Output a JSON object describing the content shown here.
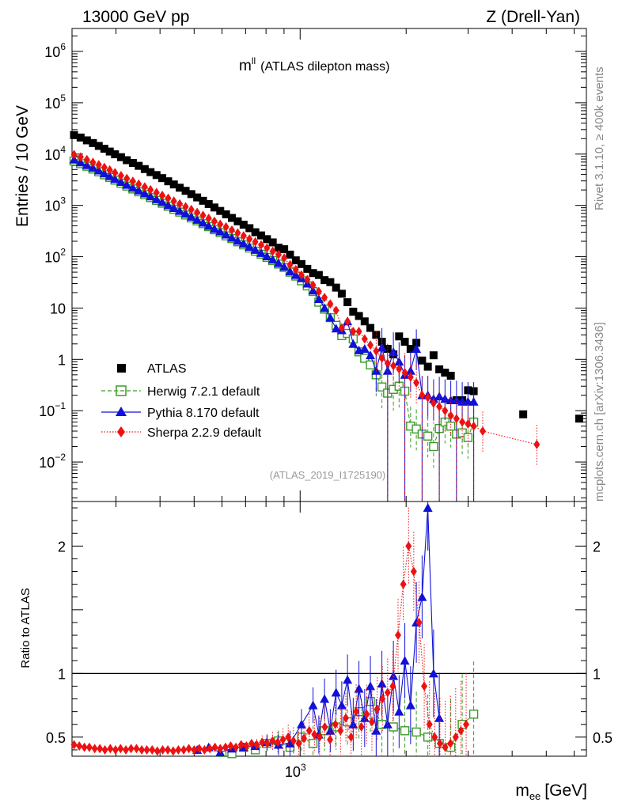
{
  "header": {
    "left": "13000 GeV pp",
    "right": "Z (Drell-Yan)"
  },
  "side": {
    "top": "Rivet 3.1.10, ≥ 400k events",
    "bottom": "mcplots.cern.ch [arXiv:1306.3436]"
  },
  "chart_data": [
    {
      "type": "scatter",
      "panel": "main",
      "title": "m",
      "title_superscript": "ll",
      "subtitle": "(ATLAS dilepton mass)",
      "watermark": "(ATLAS_2019_I1725190)",
      "ylabel": "Entries / 10 GeV",
      "xscale": "log",
      "yscale": "log",
      "xlim": [
        225,
        6500
      ],
      "ylim": [
        0.0017,
        2800000
      ],
      "yticks": [
        {
          "value": 0.01,
          "base": "10",
          "exp": "−2"
        },
        {
          "value": 0.1,
          "base": "10",
          "exp": "−1"
        },
        {
          "value": 1,
          "base": "1",
          "exp": ""
        },
        {
          "value": 10,
          "base": "10",
          "exp": ""
        },
        {
          "value": 100,
          "base": "10",
          "exp": "2"
        },
        {
          "value": 1000,
          "base": "10",
          "exp": "3"
        },
        {
          "value": 10000,
          "base": "10",
          "exp": "4"
        },
        {
          "value": 100000,
          "base": "10",
          "exp": "5"
        },
        {
          "value": 1000000,
          "base": "10",
          "exp": "6"
        }
      ],
      "legend_position": "bottom-left",
      "legend": [
        "ATLAS",
        "Herwig 7.2.1 default",
        "Pythia 8.170 default",
        "Sherpa 2.2.9 default"
      ],
      "colors": {
        "ATLAS": "#000000",
        "Herwig": "#3a9a27",
        "Pythia": "#1010d8",
        "Sherpa": "#ee1111"
      },
      "series": [
        {
          "name": "ATLAS",
          "x": [
            228,
            238,
            248,
            258,
            268,
            278,
            288,
            298,
            310,
            322,
            335,
            348,
            362,
            376,
            391,
            406,
            422,
            438,
            455,
            473,
            491,
            510,
            530,
            550,
            571,
            593,
            616,
            640,
            665,
            691,
            718,
            746,
            775,
            805,
            836,
            868,
            901,
            936,
            972,
            1009,
            1048,
            1088,
            1130,
            1173,
            1218,
            1265,
            1313,
            1363,
            1415,
            1469,
            1525,
            1583,
            1644,
            1707,
            1772,
            1840,
            1910,
            1983,
            2059,
            2138,
            2220,
            2305,
            2393,
            2484,
            2579,
            2678,
            2780,
            2886,
            2997,
            3111,
            4300,
            6200
          ],
          "y": [
            23500,
            21000,
            18500,
            16400,
            14400,
            12700,
            11200,
            9900,
            8700,
            7600,
            6700,
            5900,
            5100,
            4450,
            3900,
            3400,
            2950,
            2560,
            2210,
            1920,
            1660,
            1430,
            1230,
            1060,
            910,
            780,
            670,
            570,
            490,
            420,
            360,
            300,
            260,
            220,
            190,
            150,
            140,
            110,
            85,
            72,
            58,
            48,
            44,
            35,
            32,
            25,
            19,
            13,
            8.5,
            7.0,
            5.5,
            4.1,
            3.0,
            2.2,
            1.6,
            1.25,
            2.8,
            2.2,
            1.6,
            2.1,
            0.95,
            0.72,
            1.2,
            0.64,
            0.55,
            0.48,
            0.16,
            0.16,
            0.25,
            0.24,
            0.085,
            0.07
          ]
        },
        {
          "name": "Herwig 7.2.1 default",
          "x": [
            228,
            238,
            248,
            258,
            268,
            278,
            288,
            298,
            310,
            322,
            335,
            348,
            362,
            376,
            391,
            406,
            422,
            438,
            455,
            473,
            491,
            510,
            530,
            550,
            571,
            593,
            616,
            640,
            665,
            691,
            718,
            746,
            775,
            805,
            836,
            868,
            901,
            936,
            972,
            1009,
            1048,
            1088,
            1130,
            1173,
            1218,
            1265,
            1313,
            1363,
            1415,
            1469,
            1525,
            1583,
            1644,
            1707,
            1772,
            1840,
            1910,
            1983,
            2059,
            2138,
            2220,
            2305,
            2393,
            2484,
            2579,
            2678,
            2780,
            2886,
            2997,
            3111
          ],
          "y": [
            7300,
            6500,
            5800,
            5100,
            4500,
            3950,
            3500,
            3100,
            2700,
            2380,
            2090,
            1840,
            1620,
            1420,
            1250,
            1100,
            960,
            840,
            740,
            650,
            570,
            500,
            440,
            385,
            335,
            295,
            255,
            225,
            195,
            170,
            148,
            128,
            112,
            97,
            84,
            72,
            62,
            50,
            42,
            34,
            27,
            21,
            13,
            9.5,
            6.5,
            4.6,
            2.9,
            3.2,
            2.5,
            1.4,
            1.05,
            0.78,
            0.5,
            0.29,
            0.22,
            0.26,
            0.3,
            0.24,
            0.05,
            0.044,
            0.035,
            0.032,
            0.02,
            0.045,
            0.06,
            0.05,
            0.035,
            0.037,
            0.03,
            0.06
          ]
        },
        {
          "name": "Pythia 8.170 default",
          "x": [
            228,
            238,
            248,
            258,
            268,
            278,
            288,
            298,
            310,
            322,
            335,
            348,
            362,
            376,
            391,
            406,
            422,
            438,
            455,
            473,
            491,
            510,
            530,
            550,
            571,
            593,
            616,
            640,
            665,
            691,
            718,
            746,
            775,
            805,
            836,
            868,
            901,
            936,
            972,
            1009,
            1048,
            1088,
            1130,
            1173,
            1218,
            1265,
            1313,
            1363,
            1415,
            1469,
            1525,
            1583,
            1644,
            1707,
            1772,
            1840,
            1910,
            1983,
            2059,
            2138,
            2220,
            2305,
            2393,
            2484,
            2579,
            2678,
            2780,
            2886,
            2997,
            3111
          ],
          "y": [
            7800,
            6900,
            6100,
            5400,
            4800,
            4200,
            3700,
            3280,
            2860,
            2520,
            2210,
            1950,
            1710,
            1500,
            1320,
            1160,
            1010,
            890,
            780,
            690,
            600,
            525,
            460,
            400,
            350,
            310,
            270,
            235,
            205,
            180,
            156,
            136,
            118,
            102,
            88,
            75,
            64,
            52,
            44,
            38,
            30,
            22,
            15,
            10,
            6.5,
            4.0,
            3.7,
            5.5,
            2.0,
            1.5,
            1.6,
            1.2,
            0.6,
            1.7,
            0.6,
            1.4,
            0.9,
            0.5,
            0.6,
            1.6,
            0.2,
            0.2,
            0.17,
            0.19,
            0.17,
            0.16,
            0.16,
            0.15,
            0.15,
            0.15
          ]
        },
        {
          "name": "Sherpa 2.2.9 default",
          "x": [
            228,
            238,
            248,
            258,
            268,
            278,
            288,
            298,
            310,
            322,
            335,
            348,
            362,
            376,
            391,
            406,
            422,
            438,
            455,
            473,
            491,
            510,
            530,
            550,
            571,
            593,
            616,
            640,
            665,
            691,
            718,
            746,
            775,
            805,
            836,
            868,
            901,
            936,
            972,
            1009,
            1048,
            1088,
            1130,
            1173,
            1218,
            1265,
            1313,
            1363,
            1415,
            1469,
            1525,
            1583,
            1644,
            1707,
            1772,
            1840,
            1910,
            1983,
            2059,
            2138,
            2220,
            2305,
            2393,
            2484,
            2579,
            2678,
            2780,
            2886,
            2997,
            3111,
            3300,
            4700
          ],
          "y": [
            9800,
            8800,
            7800,
            6900,
            6200,
            5500,
            4900,
            4350,
            3800,
            3350,
            2950,
            2600,
            2290,
            2020,
            1780,
            1570,
            1380,
            1210,
            1070,
            940,
            830,
            730,
            640,
            560,
            490,
            430,
            380,
            330,
            290,
            255,
            222,
            195,
            170,
            148,
            128,
            110,
            94,
            70,
            56,
            44,
            36,
            28,
            21,
            16,
            12,
            9.0,
            4.1,
            5.5,
            3.5,
            3.5,
            2.5,
            1.9,
            1.45,
            1.05,
            0.84,
            0.75,
            0.65,
            0.55,
            0.45,
            0.35,
            0.2,
            0.18,
            0.14,
            0.12,
            0.1,
            0.08,
            0.07,
            0.06,
            0.055,
            0.05,
            0.04,
            0.022
          ]
        }
      ]
    },
    {
      "type": "scatter",
      "panel": "ratio",
      "ylabel": "Ratio to ATLAS",
      "xlabel": "m",
      "xlabel_subscript": "ee",
      "xlabel_unit": "[GeV]",
      "xscale": "log",
      "xlim": [
        225,
        6500
      ],
      "ylim": [
        0.35,
        2.35
      ],
      "yticks": [
        0.5,
        1,
        2
      ],
      "xticks": [
        {
          "value": 1000,
          "base": "10",
          "exp": "3"
        }
      ],
      "reference_line": 1,
      "series": [
        {
          "name": "Herwig 7.2.1 default",
          "x": [
            600,
            640,
            691,
            746,
            805,
            868,
            936,
            1009,
            1088,
            1173,
            1265,
            1363,
            1469,
            1583,
            1707,
            1840,
            1983,
            2138,
            2305,
            2484,
            2678,
            2886,
            3111
          ],
          "y": [
            0.38,
            0.37,
            0.42,
            0.4,
            0.45,
            0.47,
            0.42,
            0.5,
            0.45,
            0.55,
            0.58,
            0.62,
            0.7,
            0.78,
            0.6,
            0.58,
            0.55,
            0.54,
            0.5,
            0.45,
            0.42,
            0.6,
            0.68
          ]
        },
        {
          "name": "Pythia 8.170 default",
          "x": [
            510,
            550,
            593,
            640,
            691,
            746,
            805,
            868,
            936,
            1009,
            1088,
            1130,
            1173,
            1218,
            1265,
            1313,
            1363,
            1415,
            1469,
            1525,
            1583,
            1644,
            1707,
            1772,
            1840,
            1910,
            1983,
            2059,
            2138,
            2220,
            2305,
            2393,
            2484
          ],
          "y": [
            0.4,
            0.42,
            0.38,
            0.41,
            0.42,
            0.43,
            0.46,
            0.44,
            0.45,
            0.6,
            0.75,
            0.52,
            0.8,
            0.55,
            0.85,
            0.75,
            0.95,
            0.6,
            0.88,
            0.65,
            0.9,
            0.55,
            0.92,
            0.6,
            0.98,
            0.7,
            1.1,
            0.75,
            1.4,
            1.6,
            2.3,
            1.0,
            0.65
          ]
        },
        {
          "name": "Sherpa 2.2.9 default",
          "x": [
            228,
            236,
            244,
            252,
            261,
            270,
            279,
            289,
            299,
            309,
            320,
            331,
            343,
            355,
            367,
            380,
            393,
            407,
            421,
            436,
            451,
            467,
            483,
            500,
            517,
            535,
            554,
            573,
            593,
            614,
            635,
            657,
            680,
            704,
            728,
            753,
            780,
            807,
            835,
            864,
            894,
            925,
            957,
            991,
            1025,
            1061,
            1098,
            1136,
            1175,
            1216,
            1259,
            1302,
            1348,
            1395,
            1443,
            1493,
            1545,
            1599,
            1655,
            1712,
            1772,
            1833,
            1897,
            1963,
            2032,
            2102,
            2176,
            2251,
            2330,
            2411,
            2495,
            2582,
            2672,
            2765,
            2861,
            2961
          ],
          "y": [
            0.44,
            0.43,
            0.42,
            0.42,
            0.41,
            0.41,
            0.4,
            0.41,
            0.4,
            0.41,
            0.4,
            0.41,
            0.41,
            0.4,
            0.4,
            0.4,
            0.39,
            0.4,
            0.4,
            0.39,
            0.4,
            0.4,
            0.41,
            0.4,
            0.41,
            0.4,
            0.41,
            0.42,
            0.41,
            0.42,
            0.43,
            0.42,
            0.44,
            0.43,
            0.45,
            0.44,
            0.46,
            0.45,
            0.47,
            0.46,
            0.48,
            0.5,
            0.47,
            0.45,
            0.49,
            0.55,
            0.52,
            0.5,
            0.58,
            0.48,
            0.6,
            0.55,
            0.65,
            0.5,
            0.7,
            0.58,
            0.68,
            0.62,
            0.72,
            0.8,
            0.85,
            0.9,
            1.3,
            1.7,
            2.0,
            1.8,
            1.4,
            0.9,
            0.6,
            0.5,
            0.45,
            0.42,
            0.45,
            0.5,
            0.55,
            0.6
          ]
        }
      ]
    }
  ]
}
